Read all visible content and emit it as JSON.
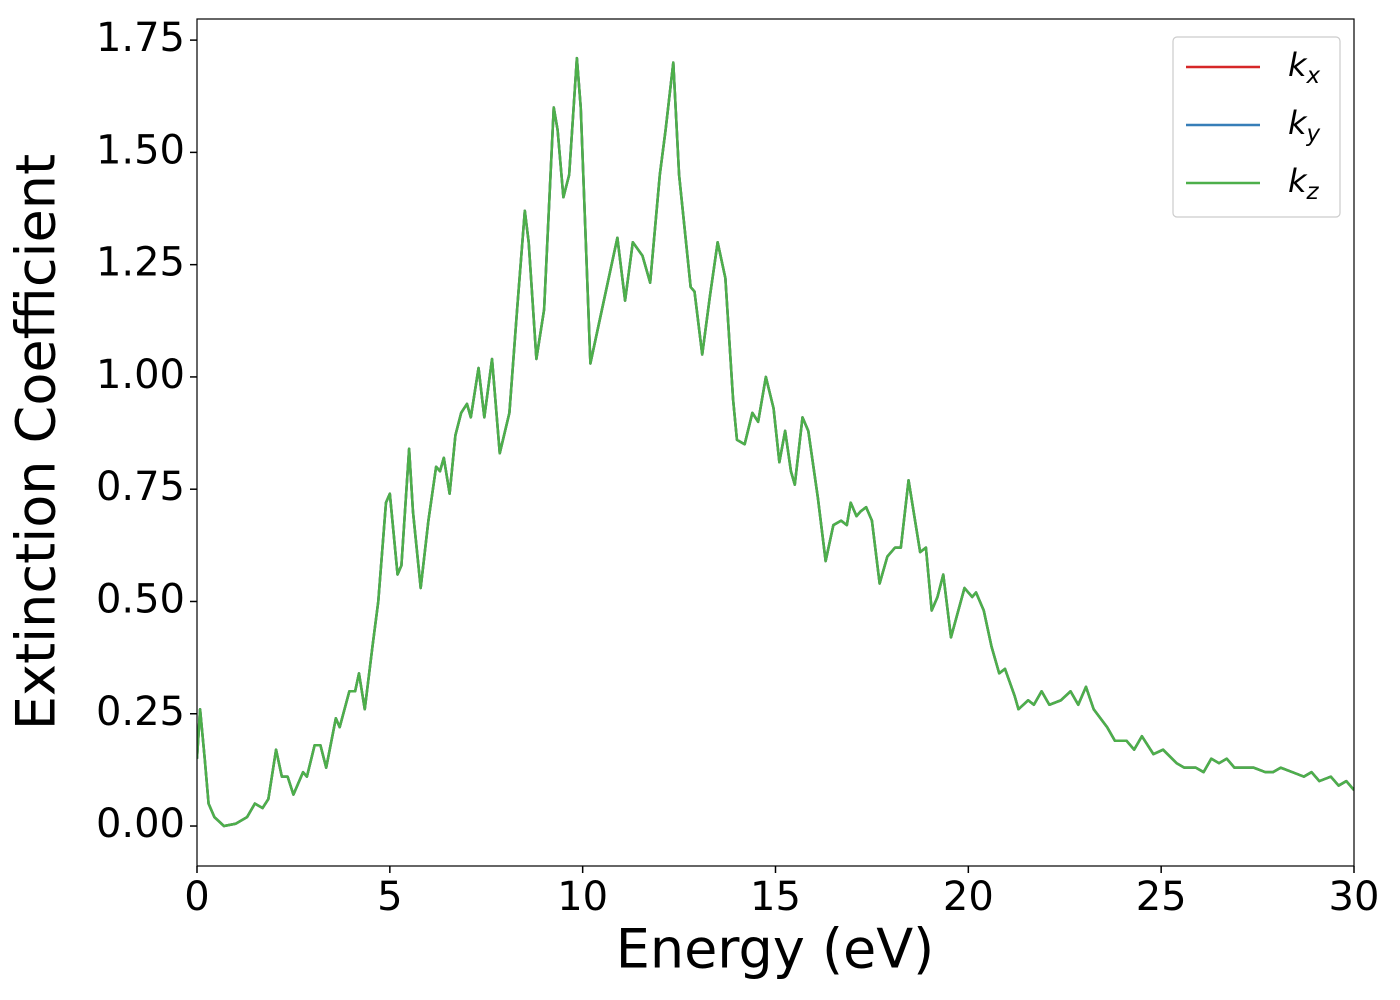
{
  "chart_data": {
    "type": "line",
    "xlabel": "Energy (eV)",
    "ylabel": "Extinction Coefficient",
    "x": [
      0,
      0.08,
      0.2,
      0.3,
      0.45,
      0.7,
      1.0,
      1.3,
      1.5,
      1.7,
      1.85,
      2.05,
      2.2,
      2.35,
      2.5,
      2.75,
      2.85,
      3.05,
      3.2,
      3.35,
      3.6,
      3.7,
      3.95,
      4.1,
      4.2,
      4.35,
      4.55,
      4.7,
      4.9,
      5.0,
      5.2,
      5.3,
      5.5,
      5.6,
      5.8,
      6.0,
      6.2,
      6.3,
      6.4,
      6.55,
      6.7,
      6.85,
      7.0,
      7.1,
      7.3,
      7.45,
      7.65,
      7.85,
      8.1,
      8.3,
      8.5,
      8.6,
      8.8,
      9.0,
      9.25,
      9.35,
      9.5,
      9.65,
      9.85,
      9.95,
      10.2,
      10.5,
      10.9,
      11.1,
      11.3,
      11.55,
      11.75,
      12.0,
      12.15,
      12.35,
      12.5,
      12.8,
      12.9,
      13.1,
      13.3,
      13.5,
      13.7,
      13.9,
      14.0,
      14.2,
      14.4,
      14.55,
      14.75,
      14.95,
      15.1,
      15.25,
      15.4,
      15.5,
      15.7,
      15.85,
      16.1,
      16.3,
      16.5,
      16.7,
      16.85,
      16.95,
      17.1,
      17.2,
      17.35,
      17.5,
      17.7,
      17.9,
      18.1,
      18.25,
      18.45,
      18.6,
      18.75,
      18.9,
      19.05,
      19.2,
      19.35,
      19.55,
      19.9,
      20.1,
      20.2,
      20.4,
      20.6,
      20.8,
      20.95,
      21.2,
      21.3,
      21.55,
      21.7,
      21.9,
      22.1,
      22.4,
      22.65,
      22.85,
      23.05,
      23.25,
      23.6,
      23.8,
      24.1,
      24.3,
      24.5,
      24.8,
      25.05,
      25.4,
      25.6,
      25.9,
      26.1,
      26.3,
      26.5,
      26.7,
      26.9,
      27.2,
      27.4,
      27.7,
      27.9,
      28.1,
      28.4,
      28.7,
      28.9,
      29.1,
      29.4,
      29.6,
      29.8,
      30
    ],
    "series": [
      {
        "name": "kx",
        "color": "#d62728",
        "values": [
          0.15,
          0.26,
          0.15,
          0.05,
          0.02,
          0.0,
          0.005,
          0.02,
          0.05,
          0.04,
          0.06,
          0.17,
          0.11,
          0.11,
          0.07,
          0.12,
          0.11,
          0.18,
          0.18,
          0.13,
          0.24,
          0.22,
          0.3,
          0.3,
          0.34,
          0.26,
          0.4,
          0.5,
          0.72,
          0.74,
          0.56,
          0.58,
          0.84,
          0.7,
          0.53,
          0.68,
          0.8,
          0.79,
          0.82,
          0.74,
          0.87,
          0.92,
          0.94,
          0.91,
          1.02,
          0.91,
          1.04,
          0.83,
          0.92,
          1.15,
          1.37,
          1.3,
          1.04,
          1.15,
          1.6,
          1.55,
          1.4,
          1.45,
          1.71,
          1.6,
          1.03,
          1.15,
          1.31,
          1.17,
          1.3,
          1.27,
          1.21,
          1.45,
          1.55,
          1.7,
          1.45,
          1.2,
          1.19,
          1.05,
          1.18,
          1.3,
          1.22,
          0.95,
          0.86,
          0.85,
          0.92,
          0.9,
          1.0,
          0.93,
          0.81,
          0.88,
          0.79,
          0.76,
          0.91,
          0.88,
          0.73,
          0.59,
          0.67,
          0.68,
          0.67,
          0.72,
          0.69,
          0.7,
          0.71,
          0.68,
          0.54,
          0.6,
          0.62,
          0.62,
          0.77,
          0.69,
          0.61,
          0.62,
          0.48,
          0.51,
          0.56,
          0.42,
          0.53,
          0.51,
          0.52,
          0.48,
          0.4,
          0.34,
          0.35,
          0.29,
          0.26,
          0.28,
          0.27,
          0.3,
          0.27,
          0.28,
          0.3,
          0.27,
          0.31,
          0.26,
          0.22,
          0.19,
          0.19,
          0.17,
          0.2,
          0.16,
          0.17,
          0.14,
          0.13,
          0.13,
          0.12,
          0.15,
          0.14,
          0.15,
          0.13,
          0.13,
          0.13,
          0.12,
          0.12,
          0.13,
          0.12,
          0.11,
          0.12,
          0.1,
          0.11,
          0.09,
          0.1,
          0.08
        ]
      },
      {
        "name": "ky",
        "color": "#377eb8",
        "values": [
          0.15,
          0.26,
          0.15,
          0.05,
          0.02,
          0.0,
          0.005,
          0.02,
          0.05,
          0.04,
          0.06,
          0.17,
          0.11,
          0.11,
          0.07,
          0.12,
          0.11,
          0.18,
          0.18,
          0.13,
          0.24,
          0.22,
          0.3,
          0.3,
          0.34,
          0.26,
          0.4,
          0.5,
          0.72,
          0.74,
          0.56,
          0.58,
          0.84,
          0.7,
          0.53,
          0.68,
          0.8,
          0.79,
          0.82,
          0.74,
          0.87,
          0.92,
          0.94,
          0.91,
          1.02,
          0.91,
          1.04,
          0.83,
          0.92,
          1.15,
          1.37,
          1.3,
          1.04,
          1.15,
          1.6,
          1.55,
          1.4,
          1.45,
          1.71,
          1.6,
          1.03,
          1.15,
          1.31,
          1.17,
          1.3,
          1.27,
          1.21,
          1.45,
          1.55,
          1.7,
          1.45,
          1.2,
          1.19,
          1.05,
          1.18,
          1.3,
          1.22,
          0.95,
          0.86,
          0.85,
          0.92,
          0.9,
          1.0,
          0.93,
          0.81,
          0.88,
          0.79,
          0.76,
          0.91,
          0.88,
          0.73,
          0.59,
          0.67,
          0.68,
          0.67,
          0.72,
          0.69,
          0.7,
          0.71,
          0.68,
          0.54,
          0.6,
          0.62,
          0.62,
          0.77,
          0.69,
          0.61,
          0.62,
          0.48,
          0.51,
          0.56,
          0.42,
          0.53,
          0.51,
          0.52,
          0.48,
          0.4,
          0.34,
          0.35,
          0.29,
          0.26,
          0.28,
          0.27,
          0.3,
          0.27,
          0.28,
          0.3,
          0.27,
          0.31,
          0.26,
          0.22,
          0.19,
          0.19,
          0.17,
          0.2,
          0.16,
          0.17,
          0.14,
          0.13,
          0.13,
          0.12,
          0.15,
          0.14,
          0.15,
          0.13,
          0.13,
          0.13,
          0.12,
          0.12,
          0.13,
          0.12,
          0.11,
          0.12,
          0.1,
          0.11,
          0.09,
          0.1,
          0.08
        ]
      },
      {
        "name": "kz",
        "color": "#4daf4a",
        "values": [
          0.15,
          0.26,
          0.15,
          0.05,
          0.02,
          0.0,
          0.005,
          0.02,
          0.05,
          0.04,
          0.06,
          0.17,
          0.11,
          0.11,
          0.07,
          0.12,
          0.11,
          0.18,
          0.18,
          0.13,
          0.24,
          0.22,
          0.3,
          0.3,
          0.34,
          0.26,
          0.4,
          0.5,
          0.72,
          0.74,
          0.56,
          0.58,
          0.84,
          0.7,
          0.53,
          0.68,
          0.8,
          0.79,
          0.82,
          0.74,
          0.87,
          0.92,
          0.94,
          0.91,
          1.02,
          0.91,
          1.04,
          0.83,
          0.92,
          1.15,
          1.37,
          1.3,
          1.04,
          1.15,
          1.6,
          1.55,
          1.4,
          1.45,
          1.71,
          1.6,
          1.03,
          1.15,
          1.31,
          1.17,
          1.3,
          1.27,
          1.21,
          1.45,
          1.55,
          1.7,
          1.45,
          1.2,
          1.19,
          1.05,
          1.18,
          1.3,
          1.22,
          0.95,
          0.86,
          0.85,
          0.92,
          0.9,
          1.0,
          0.93,
          0.81,
          0.88,
          0.79,
          0.76,
          0.91,
          0.88,
          0.73,
          0.59,
          0.67,
          0.68,
          0.67,
          0.72,
          0.69,
          0.7,
          0.71,
          0.68,
          0.54,
          0.6,
          0.62,
          0.62,
          0.77,
          0.69,
          0.61,
          0.62,
          0.48,
          0.51,
          0.56,
          0.42,
          0.53,
          0.51,
          0.52,
          0.48,
          0.4,
          0.34,
          0.35,
          0.29,
          0.26,
          0.28,
          0.27,
          0.3,
          0.27,
          0.28,
          0.3,
          0.27,
          0.31,
          0.26,
          0.22,
          0.19,
          0.19,
          0.17,
          0.2,
          0.16,
          0.17,
          0.14,
          0.13,
          0.13,
          0.12,
          0.15,
          0.14,
          0.15,
          0.13,
          0.13,
          0.13,
          0.12,
          0.12,
          0.13,
          0.12,
          0.11,
          0.12,
          0.1,
          0.11,
          0.09,
          0.1,
          0.08
        ]
      }
    ],
    "xlim": [
      0,
      30
    ],
    "xticks": [
      0,
      5,
      10,
      15,
      20,
      25,
      30
    ],
    "ylim": [
      -0.089,
      1.797
    ],
    "yticks": [
      {
        "value": 0,
        "label": "0.00"
      },
      {
        "value": 0.25,
        "label": "0.25"
      },
      {
        "value": 0.5,
        "label": "0.50"
      },
      {
        "value": 0.75,
        "label": "0.75"
      },
      {
        "value": 1.0,
        "label": "1.00"
      },
      {
        "value": 1.25,
        "label": "1.25"
      },
      {
        "value": 1.5,
        "label": "1.50"
      },
      {
        "value": 1.75,
        "label": "1.75"
      }
    ],
    "legend": "upper right"
  }
}
